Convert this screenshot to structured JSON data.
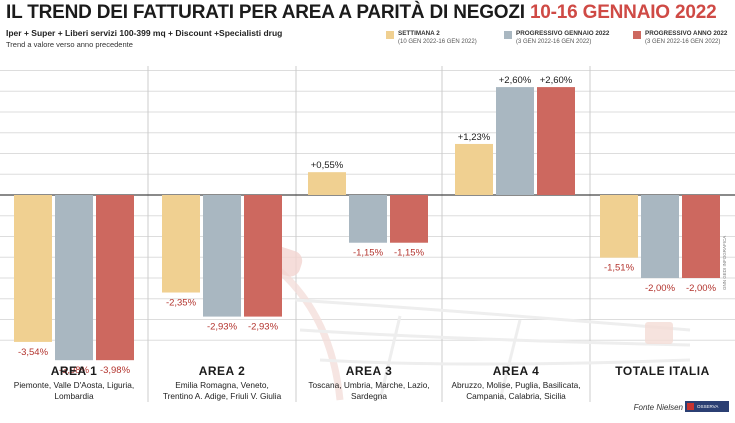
{
  "title": "IL TREND DEI FATTURATI PER AREA A PARITÀ DI NEGOZI",
  "title_date": "10-16 GENNAIO 2022",
  "subtitle": "Iper + Super + Liberi servizi 100-399 mq + Discount +Specialisti drug",
  "note": "Trend a valore verso anno precedente",
  "legend": [
    {
      "label": "SETTIMANA 2",
      "dates": "(10 GEN 2022-16 GEN 2022)",
      "color": "#f0d091"
    },
    {
      "label": "PROGRESSIVO GENNAIO 2022",
      "dates": "(3 GEN 2022-16 GEN 2022)",
      "color": "#a9b7c1"
    },
    {
      "label": "PROGRESSIVO ANNO 2022",
      "dates": "(3 GEN 2022-16 GEN 2022)",
      "color": "#cd685f"
    }
  ],
  "areas": [
    {
      "name": "AREA 1",
      "regions": [
        "Piemonte, Valle D'Aosta, Liguria,",
        "Lombardia"
      ]
    },
    {
      "name": "AREA 2",
      "regions": [
        "Emilia Romagna, Veneto,",
        "Trentino A. Adige, Friuli V. Giulia"
      ]
    },
    {
      "name": "AREA 3",
      "regions": [
        "Toscana, Umbria, Marche, Lazio,",
        "Sardegna"
      ]
    },
    {
      "name": "AREA 4",
      "regions": [
        "Abruzzo, Molise, Puglia, Basilicata,",
        "Campania, Calabria, Sicilia"
      ]
    },
    {
      "name": "TOTALE ITALIA",
      "regions": []
    }
  ],
  "chart_data": {
    "type": "bar",
    "categories": [
      "AREA 1",
      "AREA 2",
      "AREA 3",
      "AREA 4",
      "TOTALE ITALIA"
    ],
    "series": [
      {
        "name": "SETTIMANA 2",
        "values": [
          -3.54,
          -2.35,
          0.55,
          1.23,
          -1.51
        ],
        "labels": [
          "-3,54%",
          "-2,35%",
          "+0,55%",
          "+1,23%",
          "-1,51%"
        ],
        "color": "#f0d091"
      },
      {
        "name": "PROGRESSIVO GENNAIO 2022",
        "values": [
          -3.98,
          -2.93,
          -1.15,
          2.6,
          -2.0
        ],
        "labels": [
          "-3,98%",
          "-2,93%",
          "-1,15%",
          "+2,60%",
          "-2,00%"
        ],
        "color": "#a9b7c1"
      },
      {
        "name": "PROGRESSIVO ANNO 2022",
        "values": [
          -3.98,
          -2.93,
          -1.15,
          2.6,
          -2.0
        ],
        "labels": [
          "-3,98%",
          "-2,93%",
          "-1,15%",
          "+2,60%",
          "-2,00%"
        ],
        "color": "#cd685f"
      }
    ],
    "ylim": [
      -4.1,
      2.8
    ],
    "grid": true,
    "negative_label_color": "#b3342e",
    "positive_label_color": "#1b1b1b"
  },
  "source": "Fonte Nielsen",
  "credit": "GNN GEDI INFOGRAFICA",
  "logo_text": "OSSERVA ITALIA"
}
